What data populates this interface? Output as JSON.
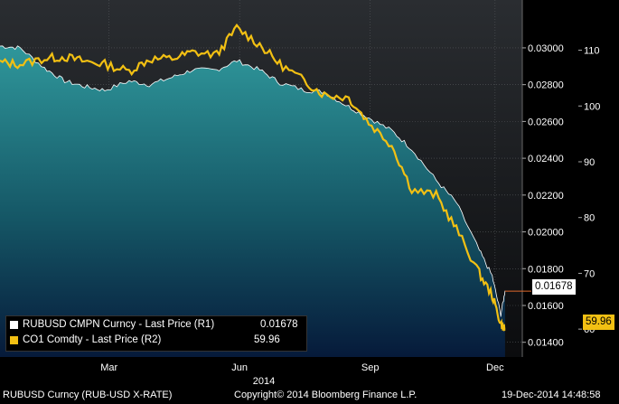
{
  "chart_data": {
    "type": "area",
    "year_label": "2014",
    "x_ticks": [
      "Mar",
      "Jun",
      "Sep",
      "Dec"
    ],
    "right_axis_1": {
      "ticks": [
        "0.03000",
        "0.02800",
        "0.02600",
        "0.02400",
        "0.02200",
        "0.02000",
        "0.01800",
        "0.01600",
        "0.01400"
      ],
      "range": [
        0.0132,
        0.0326
      ]
    },
    "right_axis_2": {
      "ticks": [
        "110",
        "100",
        "90",
        "80",
        "70",
        "60"
      ],
      "range": [
        55,
        119
      ]
    },
    "x": [
      "2014-01-01",
      "2014-01-15",
      "2014-02-01",
      "2014-02-15",
      "2014-03-01",
      "2014-03-15",
      "2014-04-01",
      "2014-04-15",
      "2014-05-01",
      "2014-05-15",
      "2014-06-01",
      "2014-06-15",
      "2014-07-01",
      "2014-07-15",
      "2014-08-01",
      "2014-08-15",
      "2014-09-01",
      "2014-09-15",
      "2014-10-01",
      "2014-10-15",
      "2014-11-01",
      "2014-11-15",
      "2014-12-01",
      "2014-12-10",
      "2014-12-16",
      "2014-12-19"
    ],
    "series": [
      {
        "name": "RUBUSD CMPN Curncy - Last Price (R1)",
        "axis": "R1",
        "color": "#2e8f94",
        "last": "0.01678",
        "values": [
          0.0301,
          0.03,
          0.0289,
          0.0282,
          0.0279,
          0.0277,
          0.0282,
          0.028,
          0.0284,
          0.0288,
          0.0288,
          0.0293,
          0.0288,
          0.0281,
          0.0277,
          0.0276,
          0.0268,
          0.0262,
          0.0255,
          0.0245,
          0.0228,
          0.0216,
          0.019,
          0.0176,
          0.0155,
          0.0168
        ]
      },
      {
        "name": "CO1 Comdty - Last Price (R2)",
        "axis": "R2",
        "color": "#f2c013",
        "last": "59.96",
        "values": [
          107.8,
          107.5,
          108.5,
          108.8,
          108.0,
          107.5,
          106.2,
          108.4,
          108.5,
          109.6,
          109.2,
          114.0,
          111.0,
          107.5,
          104.5,
          102.0,
          101.5,
          97.0,
          93.0,
          85.0,
          84.0,
          78.0,
          70.0,
          66.0,
          61.0,
          59.96
        ]
      }
    ],
    "legend_placement": "bottom-left"
  },
  "footer": {
    "left": "RUBUSD Curncy (RUB-USD X-RATE)",
    "center": "Copyright© 2014 Bloomberg Finance L.P.",
    "right": "19-Dec-2014 14:48:58"
  },
  "legend": {
    "row1_label": "RUBUSD CMPN Curncy - Last Price (R1)",
    "row1_value": "0.01678",
    "row2_label": "CO1 Comdty - Last Price (R2)",
    "row2_value": "59.96"
  }
}
